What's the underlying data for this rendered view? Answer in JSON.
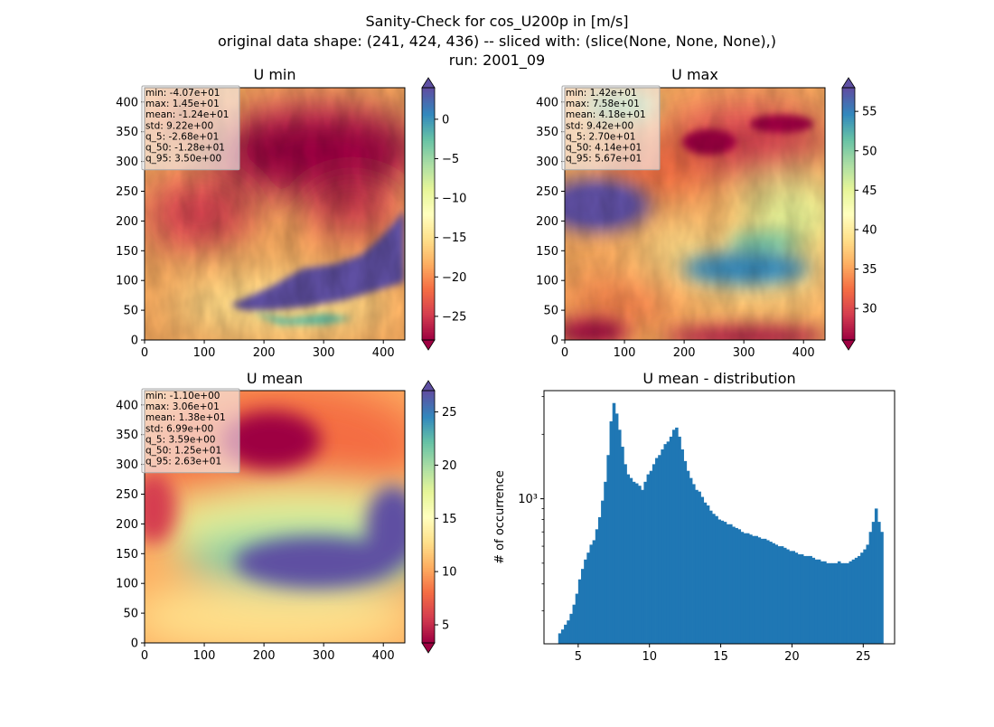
{
  "figure": {
    "title_lines": [
      "Sanity-Check for cos_U200p in [m/s]",
      "original data shape: (241, 424, 436) -- sliced with: (slice(None, None, None),)",
      "run: 2001_09"
    ]
  },
  "colors": {
    "cmap": [
      "#9e0142",
      "#d53e4f",
      "#f46d43",
      "#fdae61",
      "#fee08b",
      "#ffffbf",
      "#e6f598",
      "#abdda4",
      "#66c2a5",
      "#3288bd",
      "#5e4fa2"
    ],
    "hist_bar": "#1f77b4"
  },
  "chart_data": [
    {
      "type": "heatmap",
      "title": "U min",
      "x_ticks": [
        "0",
        "100",
        "200",
        "300",
        "400"
      ],
      "y_ticks": [
        "0",
        "50",
        "100",
        "150",
        "200",
        "250",
        "300",
        "350",
        "400"
      ],
      "xlim": [
        0,
        436
      ],
      "ylim": [
        0,
        424
      ],
      "colorbar": {
        "min": -28,
        "max": 4,
        "ticks": [
          "0",
          "−5",
          "−10",
          "−15",
          "−20",
          "−25"
        ],
        "tick_values": [
          0,
          -5,
          -10,
          -15,
          -20,
          -25
        ],
        "extend": "both"
      },
      "stats": [
        "min: -4.07e+01",
        "max: 1.45e+01",
        "mean: -1.24e+01",
        "std: 9.22e+00",
        "q_5: -2.68e+01",
        "q_50: -1.28e+01",
        "q_95: 3.50e+00"
      ]
    },
    {
      "type": "heatmap",
      "title": "U max",
      "x_ticks": [
        "0",
        "100",
        "200",
        "300",
        "400"
      ],
      "y_ticks": [
        "0",
        "50",
        "100",
        "150",
        "200",
        "250",
        "300",
        "350",
        "400"
      ],
      "xlim": [
        0,
        436
      ],
      "ylim": [
        0,
        424
      ],
      "colorbar": {
        "min": 26,
        "max": 58,
        "ticks": [
          "55",
          "50",
          "45",
          "40",
          "35",
          "30"
        ],
        "tick_values": [
          55,
          50,
          45,
          40,
          35,
          30
        ],
        "extend": "both"
      },
      "stats": [
        "min: 1.42e+01",
        "max: 7.58e+01",
        "mean: 4.18e+01",
        "std: 9.42e+00",
        "q_5: 2.70e+01",
        "q_50: 4.14e+01",
        "q_95: 5.67e+01"
      ]
    },
    {
      "type": "heatmap",
      "title": "U mean",
      "x_ticks": [
        "0",
        "100",
        "200",
        "300",
        "400"
      ],
      "y_ticks": [
        "0",
        "50",
        "100",
        "150",
        "200",
        "250",
        "300",
        "350",
        "400"
      ],
      "xlim": [
        0,
        436
      ],
      "ylim": [
        0,
        424
      ],
      "colorbar": {
        "min": 3.3,
        "max": 27,
        "ticks": [
          "25",
          "20",
          "15",
          "10",
          "5"
        ],
        "tick_values": [
          25,
          20,
          15,
          10,
          5
        ],
        "extend": "both"
      },
      "stats": [
        "min: -1.10e+00",
        "max: 3.06e+01",
        "mean: 1.38e+01",
        "std: 6.99e+00",
        "q_5: 3.59e+00",
        "q_50: 1.25e+01",
        "q_95: 2.63e+01"
      ]
    },
    {
      "type": "bar",
      "title": "U mean - distribution",
      "ylabel": "# of occurrence",
      "xlabel": "",
      "x_ticks": [
        "5",
        "10",
        "15",
        "20",
        "25"
      ],
      "x_tick_values": [
        5,
        10,
        15,
        20,
        25
      ],
      "y_ticks": [
        "10³"
      ],
      "y_tick_values": [
        1000
      ],
      "y_scale": "log",
      "xlim": [
        2.6,
        27.2
      ],
      "ylim": [
        210,
        3200
      ],
      "bins": [
        3.6,
        3.8,
        4.0,
        4.2,
        4.4,
        4.6,
        4.8,
        5.0,
        5.2,
        5.4,
        5.6,
        5.8,
        6.0,
        6.2,
        6.4,
        6.6,
        6.8,
        7.0,
        7.2,
        7.4,
        7.6,
        7.8,
        8.0,
        8.2,
        8.4,
        8.6,
        8.8,
        9.0,
        9.2,
        9.4,
        9.6,
        9.8,
        10.0,
        10.2,
        10.4,
        10.6,
        10.8,
        11.0,
        11.2,
        11.4,
        11.6,
        11.8,
        12.0,
        12.2,
        12.4,
        12.6,
        12.8,
        13.0,
        13.2,
        13.4,
        13.6,
        13.8,
        14.0,
        14.2,
        14.4,
        14.6,
        14.8,
        15.0,
        15.2,
        15.4,
        15.6,
        15.8,
        16.0,
        16.2,
        16.4,
        16.6,
        16.8,
        17.0,
        17.2,
        17.4,
        17.6,
        17.8,
        18.0,
        18.2,
        18.4,
        18.6,
        18.8,
        19.0,
        19.2,
        19.4,
        19.6,
        19.8,
        20.0,
        20.2,
        20.4,
        20.6,
        20.8,
        21.0,
        21.2,
        21.4,
        21.6,
        21.8,
        22.0,
        22.2,
        22.4,
        22.6,
        22.8,
        23.0,
        23.2,
        23.4,
        23.6,
        23.8,
        24.0,
        24.2,
        24.4,
        24.6,
        24.8,
        25.0,
        25.2,
        25.4,
        25.6,
        25.8,
        26.0,
        26.2
      ],
      "values": [
        235,
        245,
        258,
        270,
        290,
        320,
        360,
        420,
        470,
        520,
        560,
        610,
        640,
        720,
        820,
        980,
        1200,
        1600,
        2300,
        2800,
        2500,
        2100,
        1750,
        1450,
        1300,
        1250,
        1200,
        1180,
        1150,
        1100,
        1200,
        1300,
        1350,
        1450,
        1550,
        1600,
        1700,
        1800,
        1850,
        1950,
        2100,
        2150,
        1950,
        1700,
        1500,
        1350,
        1250,
        1170,
        1100,
        1080,
        1020,
        960,
        930,
        880,
        850,
        830,
        800,
        790,
        780,
        760,
        760,
        740,
        730,
        720,
        700,
        690,
        690,
        680,
        670,
        670,
        660,
        650,
        650,
        640,
        630,
        620,
        610,
        600,
        600,
        590,
        580,
        570,
        570,
        560,
        550,
        550,
        540,
        540,
        540,
        530,
        520,
        520,
        510,
        510,
        500,
        500,
        500,
        500,
        510,
        500,
        500,
        500,
        510,
        520,
        530,
        540,
        560,
        580,
        610,
        700,
        780,
        900,
        780,
        700
      ]
    }
  ]
}
